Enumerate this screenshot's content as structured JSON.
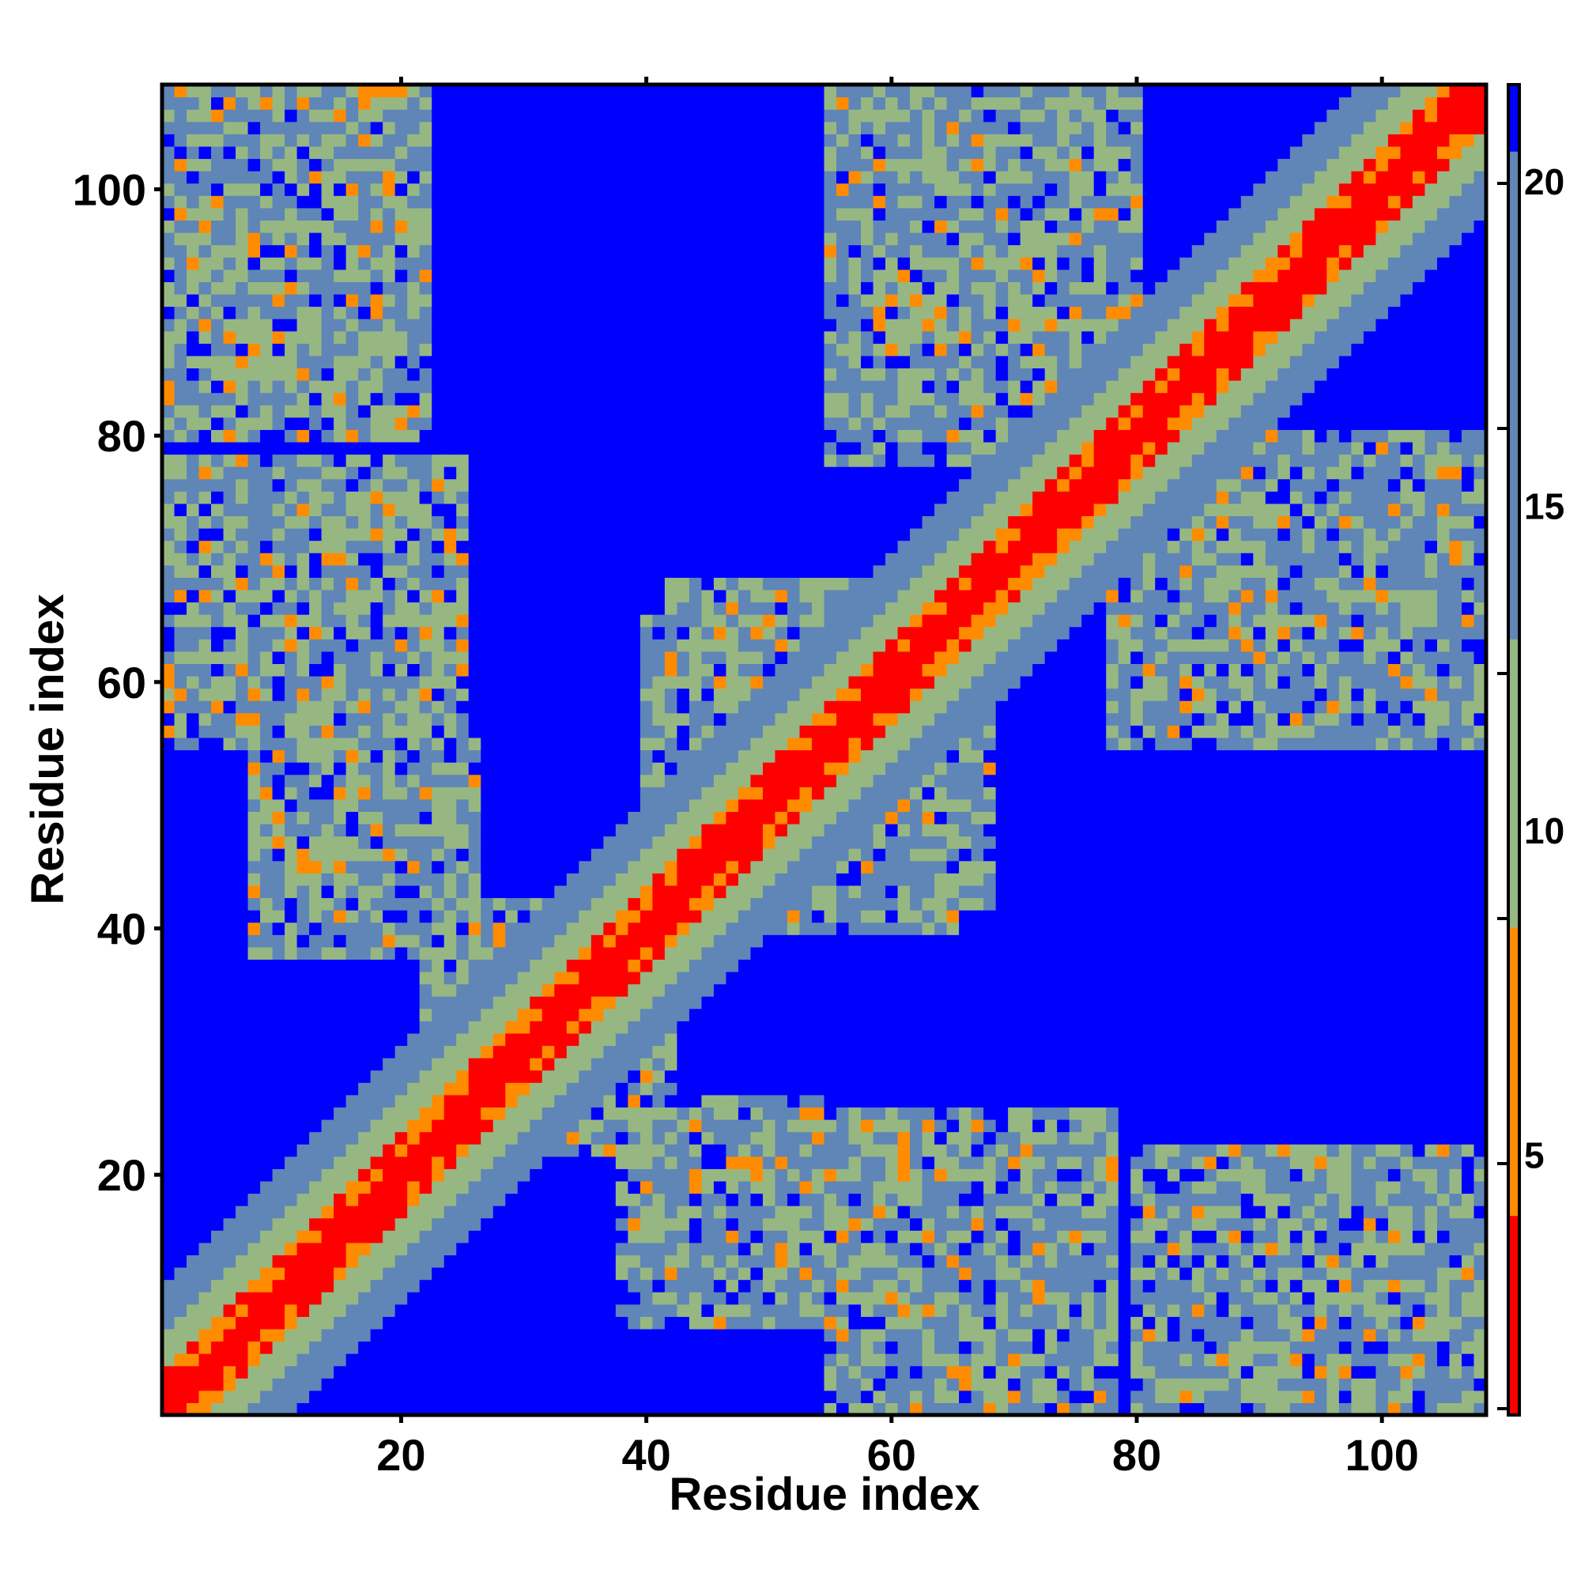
{
  "chart_data": {
    "type": "heatmap",
    "title": "",
    "xlabel": "Residue index",
    "ylabel": "Residue index",
    "xlim": [
      1,
      108
    ],
    "ylim": [
      1,
      108
    ],
    "xticks": [
      20,
      40,
      60,
      80,
      100
    ],
    "yticks": [
      20,
      40,
      60,
      80,
      100
    ],
    "colorbar": {
      "ticks": [
        5,
        10,
        15,
        20
      ],
      "range": [
        1,
        21.5
      ],
      "colors": {
        "lowest": "#ff0000",
        "low": "#ff8c00",
        "mid": "#97b782",
        "high": "#5f86b6",
        "cutoff": "#0000ff"
      }
    },
    "description_values": {
      "n_residues": 108,
      "metric_cutoff": 20
    },
    "contact_regions": [
      {
        "x": [
          1,
          108
        ],
        "y": [
          1,
          108
        ],
        "pattern": "diagonal-band"
      },
      {
        "x": [
          1,
          20
        ],
        "y": [
          80,
          108
        ]
      },
      {
        "x": [
          1,
          25
        ],
        "y": [
          55,
          78
        ]
      },
      {
        "x": [
          8,
          26
        ],
        "y": [
          38,
          55
        ]
      },
      {
        "x": [
          22,
          42
        ],
        "y": [
          25,
          42
        ]
      },
      {
        "x": [
          40,
          68
        ],
        "y": [
          42,
          65
        ]
      },
      {
        "x": [
          55,
          80
        ],
        "y": [
          80,
          108
        ]
      },
      {
        "x": [
          78,
          108
        ],
        "y": [
          55,
          78
        ]
      },
      {
        "x": [
          38,
          56
        ],
        "y": [
          8,
          25
        ]
      },
      {
        "x": [
          55,
          78
        ],
        "y": [
          1,
          25
        ]
      },
      {
        "x": [
          80,
          108
        ],
        "y": [
          1,
          22
        ]
      }
    ]
  }
}
